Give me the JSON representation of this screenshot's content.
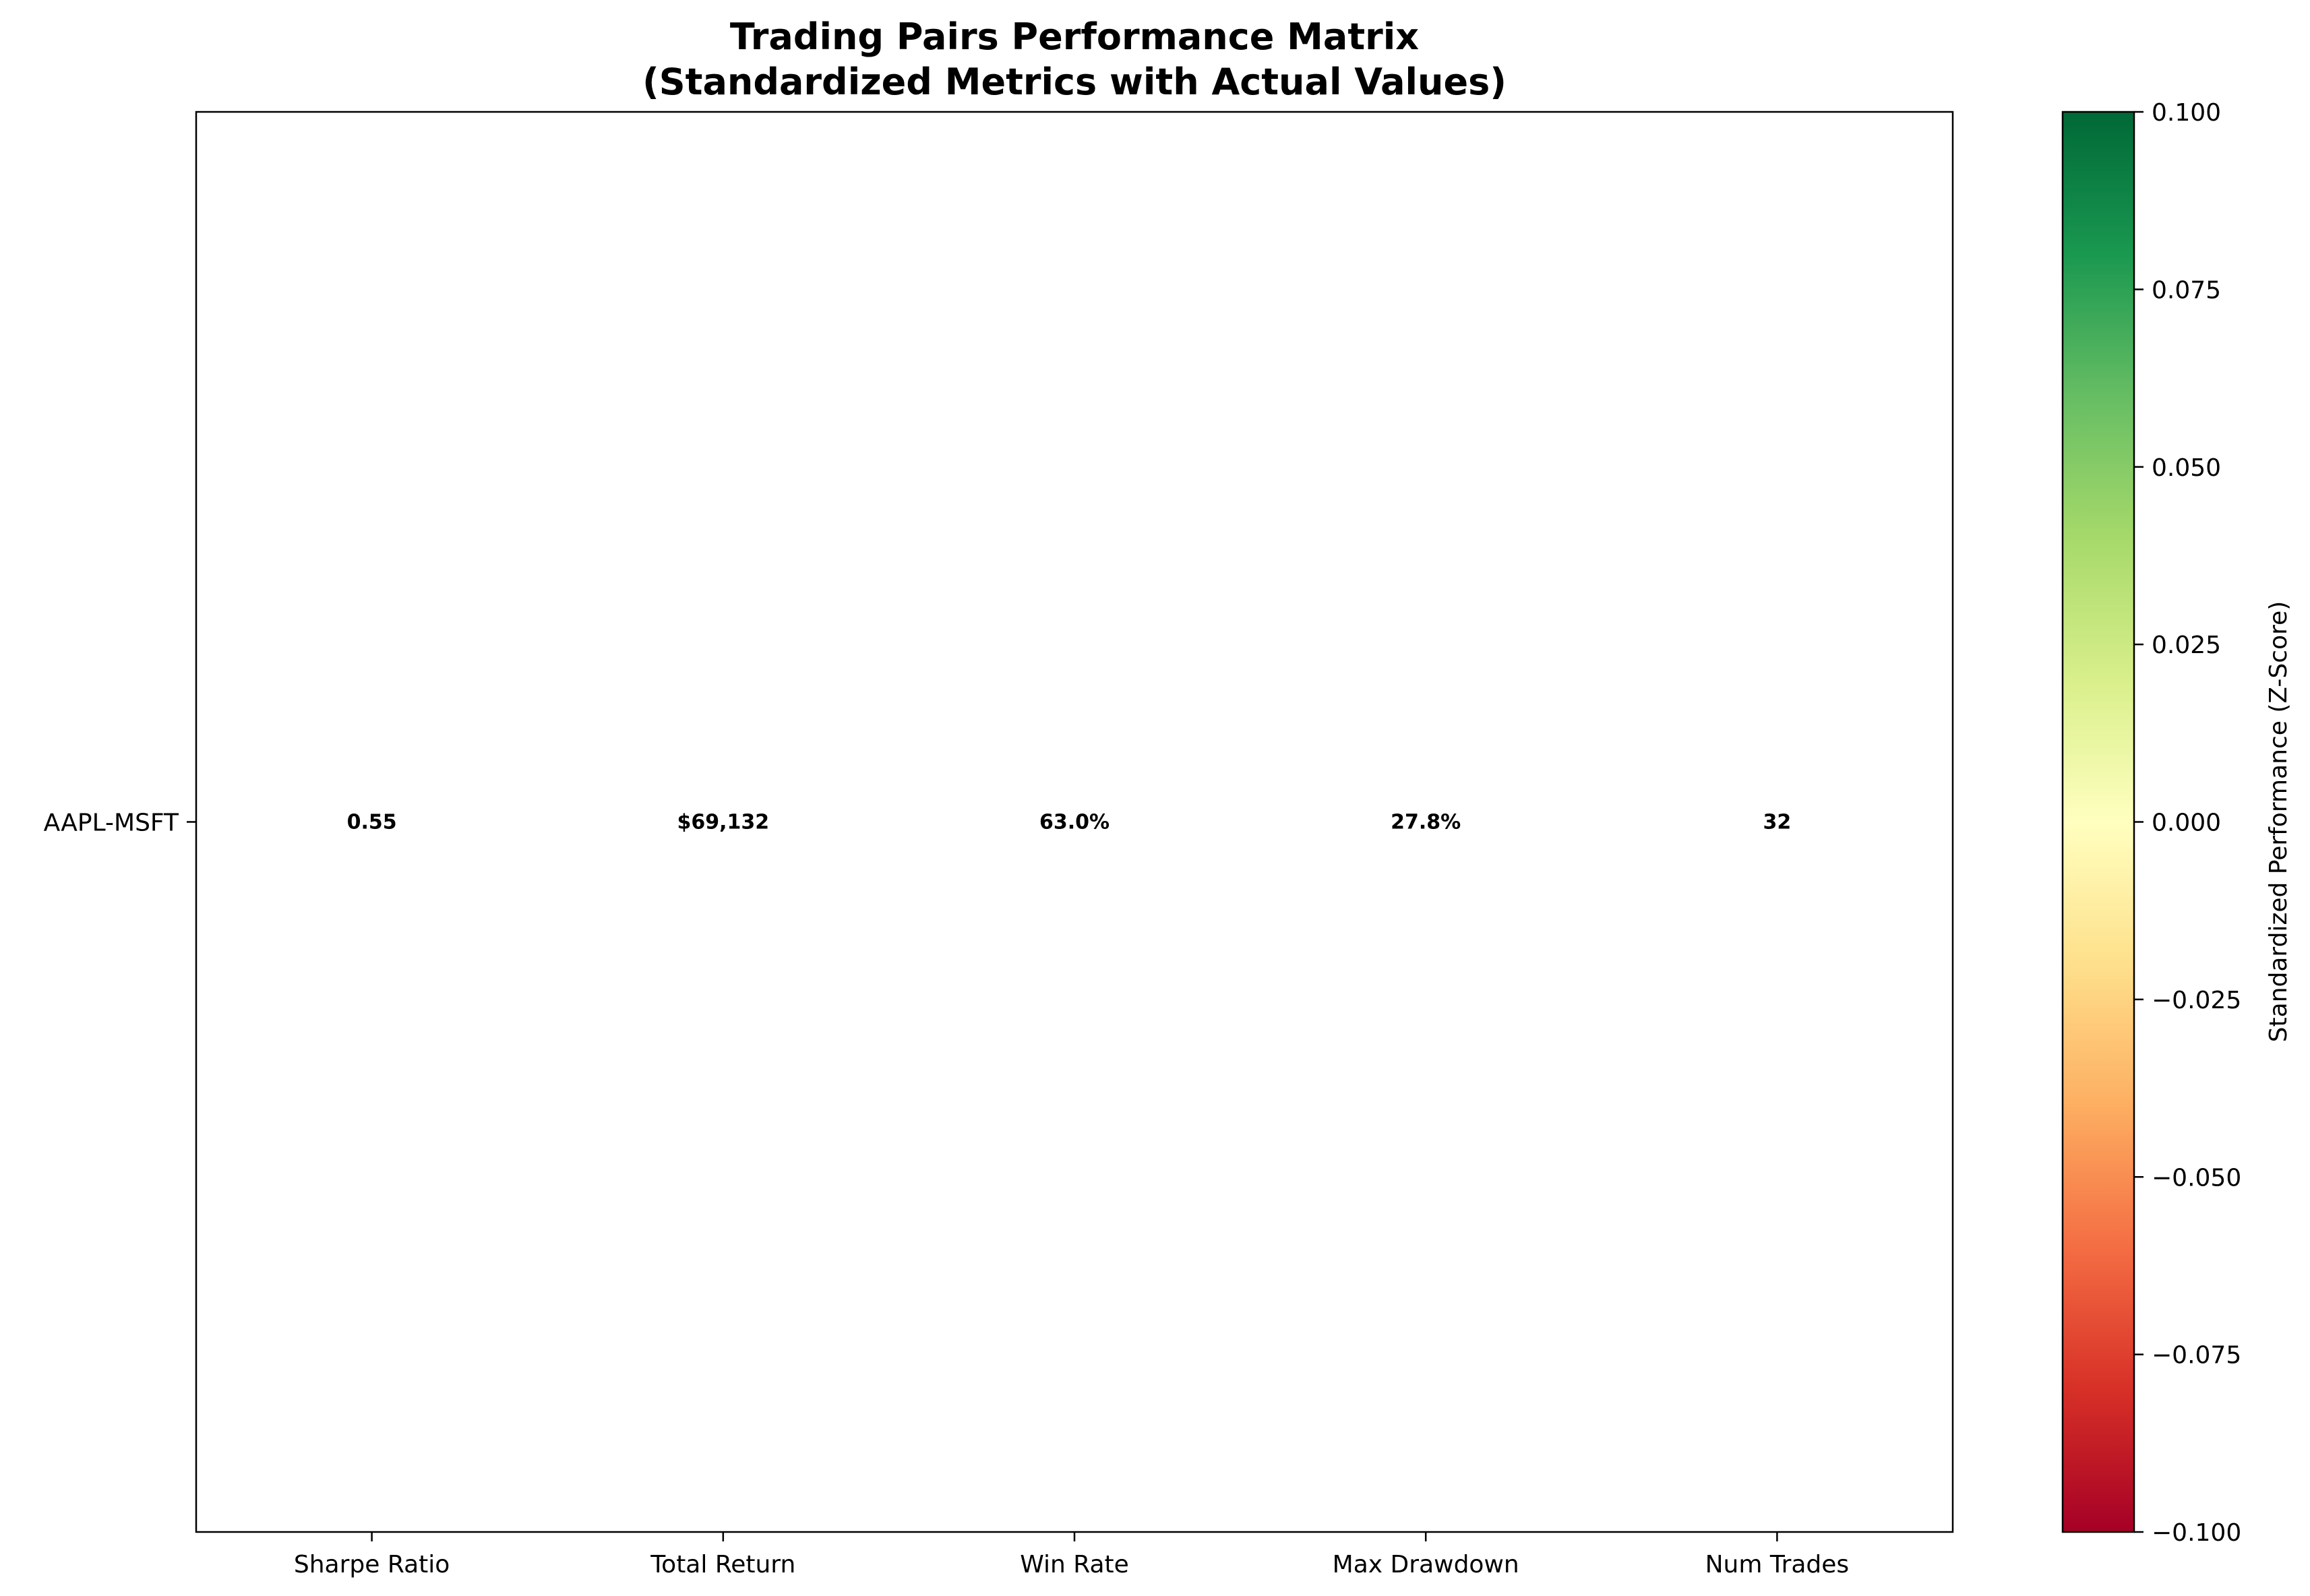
{
  "chart_data": {
    "type": "heatmap",
    "title_lines": [
      "Trading Pairs Performance Matrix",
      "(Standardized Metrics with Actual Values)"
    ],
    "rows": [
      "AAPL-MSFT"
    ],
    "columns": [
      "Sharpe Ratio",
      "Total Return",
      "Win Rate",
      "Max Drawdown",
      "Num Trades"
    ],
    "z_values": [
      [
        0,
        0,
        0,
        0,
        0
      ]
    ],
    "cell_labels": [
      [
        "0.55",
        "$69,132",
        "63.0%",
        "27.8%",
        "32"
      ]
    ],
    "colorbar": {
      "label": "Standardized Performance (Z-Score)",
      "range": [
        -0.1,
        0.1
      ],
      "ticks": [
        0.1,
        0.075,
        0.05,
        0.025,
        0.0,
        -0.025,
        -0.05,
        -0.075,
        -0.1
      ],
      "tick_labels": [
        "0.100",
        "0.075",
        "0.050",
        "0.025",
        "0.000",
        "−0.025",
        "−0.050",
        "−0.075",
        "−0.100"
      ],
      "colormap": "RdYlGn",
      "stops": [
        "#a50026",
        "#d73027",
        "#f46d43",
        "#fdae61",
        "#fee08b",
        "#ffffbf",
        "#d9ef8b",
        "#a6d96a",
        "#66bd63",
        "#1a9850",
        "#006837"
      ]
    }
  }
}
